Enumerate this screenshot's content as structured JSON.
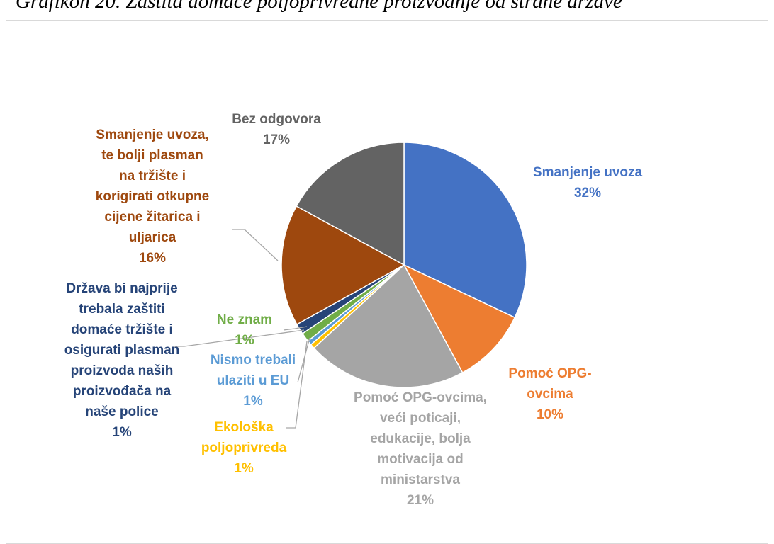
{
  "caption": "Grafikon 20. Zaštita domaće poljoprivredne proizvodnje od strane države",
  "chart_data": {
    "type": "pie",
    "title": "",
    "slices": [
      {
        "lines": [
          "Smanjenje uvoza"
        ],
        "value": 32,
        "pct": "32%",
        "color": "#4472c4"
      },
      {
        "lines": [
          "Pomoć OPG-",
          "ovcima"
        ],
        "value": 10,
        "pct": "10%",
        "color": "#ed7d31"
      },
      {
        "lines": [
          "Pomoć OPG-ovcima,",
          "veći poticaji,",
          "edukacije, bolja",
          "motivacija od",
          "ministarstva"
        ],
        "value": 21,
        "pct": "21%",
        "color": "#a5a5a5"
      },
      {
        "lines": [
          "Ekološka",
          "poljoprivreda"
        ],
        "value": 0.6,
        "pct": "1%",
        "color": "#ffc000"
      },
      {
        "lines": [
          "Nismo trebali",
          "ulaziti u EU"
        ],
        "value": 0.6,
        "pct": "1%",
        "color": "#5b9bd5"
      },
      {
        "lines": [
          "Ne znam"
        ],
        "value": 1.2,
        "pct": "1%",
        "color": "#70ad47"
      },
      {
        "lines": [
          "Država bi najprije",
          "trebala zaštiti",
          "domaće tržište i",
          "osigurati plasman",
          "proizvoda naših",
          "proizvođača  na",
          "naše police"
        ],
        "value": 1.4,
        "pct": "1%",
        "color": "#264478"
      },
      {
        "lines": [
          "Smanjenje uvoza,",
          "te bolji plasman",
          "na tržište i",
          "korigirati otkupne",
          "cijene žitarica i",
          "uljarica"
        ],
        "value": 16,
        "pct": "16%",
        "color": "#9e480e"
      },
      {
        "lines": [
          "Bez odgovora"
        ],
        "value": 17,
        "pct": "17%",
        "color": "#636363"
      }
    ]
  }
}
